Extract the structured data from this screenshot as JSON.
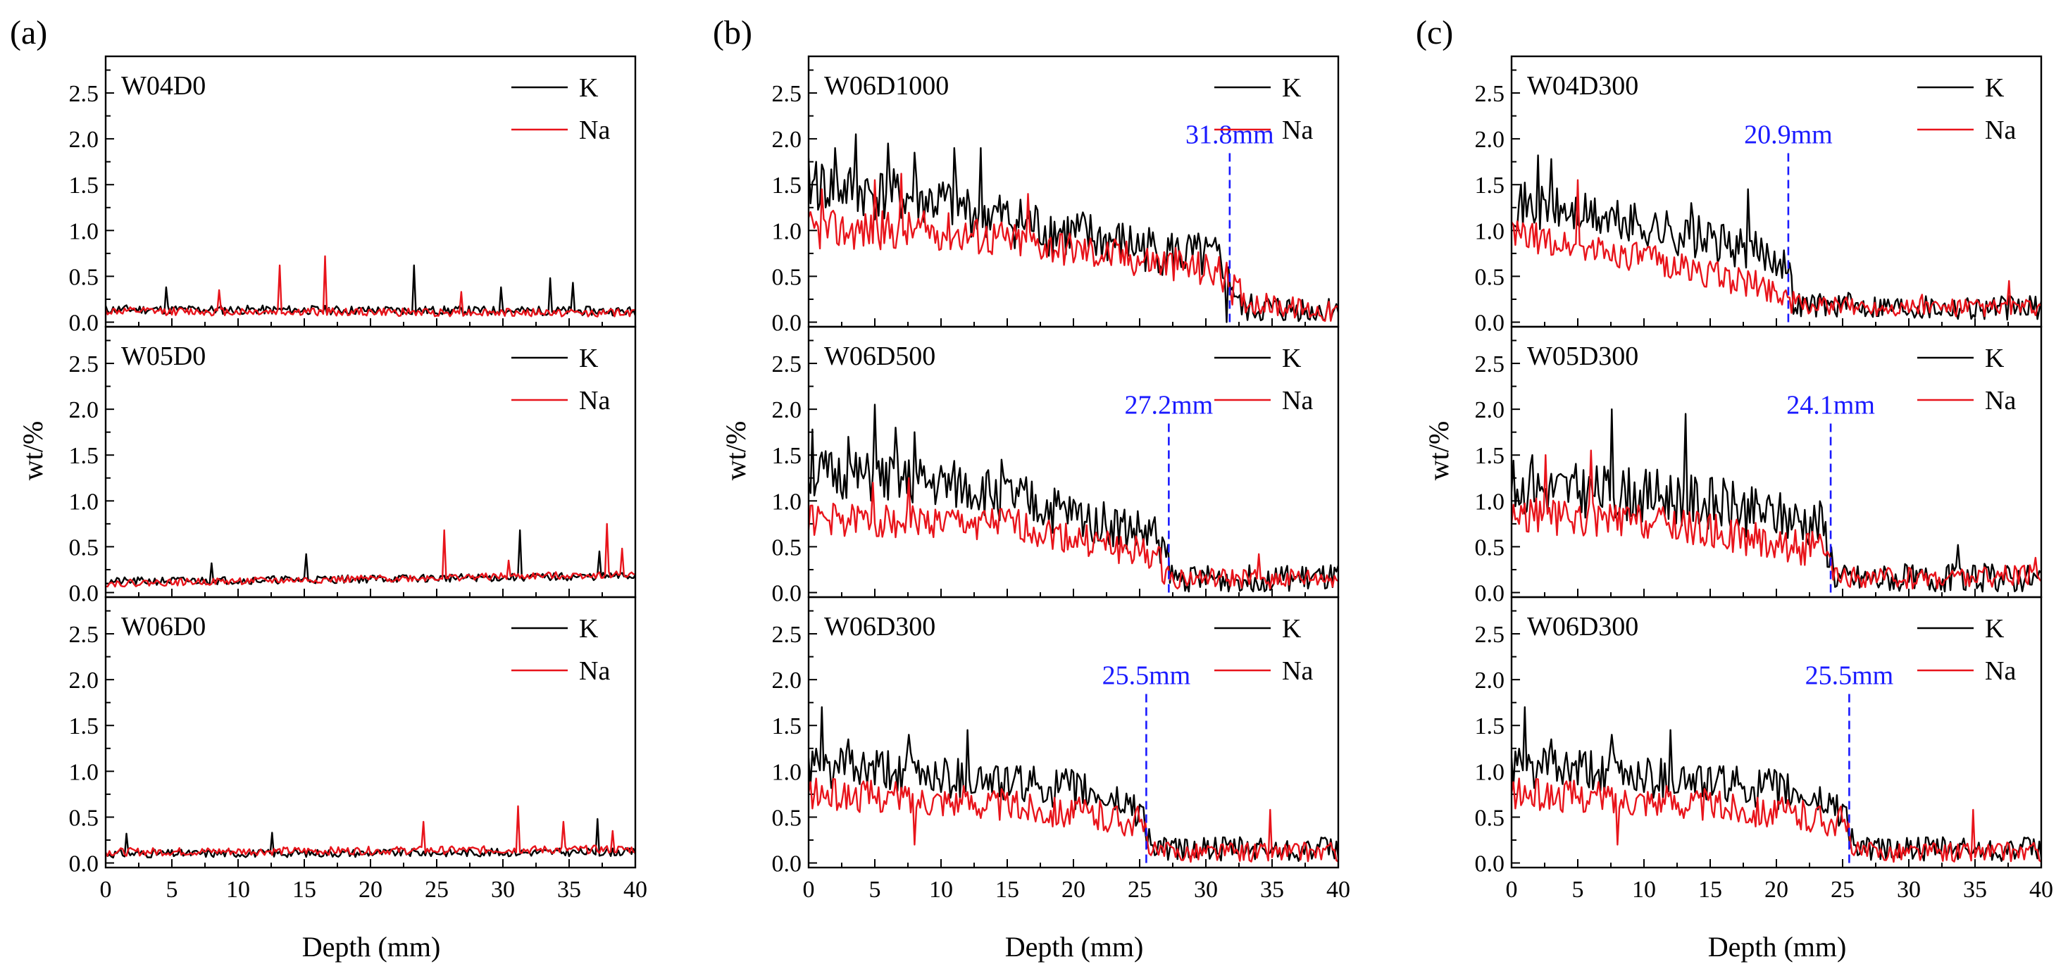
{
  "figure": {
    "x_label": "Depth (mm)",
    "y_label": "wt/%",
    "x_ticks": [
      "0",
      "5",
      "10",
      "15",
      "20",
      "25",
      "30",
      "35",
      "40"
    ],
    "y_ticks": [
      "0.0",
      "0.5",
      "1.0",
      "1.5",
      "2.0",
      "2.5"
    ],
    "legend_k": "K",
    "legend_na": "Na",
    "colors": {
      "k": "#000000",
      "na": "#e8141b",
      "marker": "#1a1aff"
    }
  },
  "chart_data": [
    {
      "type": "line",
      "panel": "(a)",
      "title": "W04D0",
      "xlim": [
        0,
        40
      ],
      "ylim": [
        -0.05,
        2.9
      ],
      "series": [
        {
          "name": "K",
          "profile": [
            [
              0,
              0.14
            ],
            [
              40,
              0.12
            ]
          ],
          "noise": 0.09,
          "seed": 11,
          "spikes": [
            [
              4.5,
              0.38
            ],
            [
              23.3,
              0.62
            ],
            [
              29.8,
              0.38
            ],
            [
              33.5,
              0.48
            ],
            [
              35.3,
              0.43
            ]
          ]
        },
        {
          "name": "Na",
          "profile": [
            [
              0,
              0.12
            ],
            [
              40,
              0.1
            ]
          ],
          "noise": 0.08,
          "seed": 12,
          "spikes": [
            [
              13.2,
              0.62
            ],
            [
              16.5,
              0.72
            ],
            [
              8.5,
              0.35
            ],
            [
              26.8,
              0.33
            ]
          ]
        }
      ]
    },
    {
      "type": "line",
      "panel": "(a)",
      "title": "W05D0",
      "xlim": [
        0,
        40
      ],
      "ylim": [
        -0.05,
        2.9
      ],
      "series": [
        {
          "name": "K",
          "profile": [
            [
              0,
              0.12
            ],
            [
              40,
              0.18
            ]
          ],
          "noise": 0.08,
          "seed": 21,
          "spikes": [
            [
              15.1,
              0.42
            ],
            [
              31.3,
              0.68
            ],
            [
              37.3,
              0.45
            ],
            [
              8,
              0.32
            ]
          ]
        },
        {
          "name": "Na",
          "profile": [
            [
              0,
              0.1
            ],
            [
              40,
              0.2
            ]
          ],
          "noise": 0.07,
          "seed": 22,
          "spikes": [
            [
              25.6,
              0.68
            ],
            [
              37.8,
              0.75
            ],
            [
              39,
              0.48
            ],
            [
              30.4,
              0.35
            ]
          ]
        }
      ]
    },
    {
      "type": "line",
      "panel": "(a)",
      "title": "W06D0",
      "xlim": [
        0,
        40
      ],
      "ylim": [
        -0.05,
        2.9
      ],
      "series": [
        {
          "name": "K",
          "profile": [
            [
              0,
              0.1
            ],
            [
              40,
              0.12
            ]
          ],
          "noise": 0.08,
          "seed": 31,
          "spikes": [
            [
              1.6,
              0.32
            ],
            [
              12.6,
              0.33
            ],
            [
              37.1,
              0.48
            ]
          ]
        },
        {
          "name": "Na",
          "profile": [
            [
              0,
              0.12
            ],
            [
              40,
              0.15
            ]
          ],
          "noise": 0.08,
          "seed": 32,
          "spikes": [
            [
              31.2,
              0.62
            ],
            [
              24,
              0.45
            ],
            [
              34.5,
              0.45
            ],
            [
              38.3,
              0.35
            ]
          ]
        }
      ]
    },
    {
      "type": "line",
      "panel": "(b)",
      "title": "W06D1000",
      "xlim": [
        0,
        40
      ],
      "ylim": [
        -0.05,
        2.9
      ],
      "marker": {
        "x": 31.8,
        "label": "31.8mm"
      },
      "series": [
        {
          "name": "K",
          "profile": [
            [
              0,
              1.5
            ],
            [
              10,
              1.3
            ],
            [
              20,
              0.95
            ],
            [
              31.5,
              0.65
            ],
            [
              32.6,
              0.15
            ],
            [
              40,
              0.12
            ]
          ],
          "noise": 0.3,
          "seed": 41,
          "spikes": [
            [
              0.5,
              1.75
            ],
            [
              2,
              1.9
            ],
            [
              3.5,
              2.05
            ],
            [
              6,
              1.95
            ],
            [
              8,
              1.85
            ],
            [
              11,
              1.9
            ],
            [
              13,
              1.9
            ],
            [
              31.5,
              0.0
            ]
          ]
        },
        {
          "name": "Na",
          "profile": [
            [
              0,
              1.0
            ],
            [
              10,
              1.0
            ],
            [
              20,
              0.8
            ],
            [
              31,
              0.55
            ],
            [
              33,
              0.22
            ],
            [
              40,
              0.1
            ]
          ],
          "noise": 0.22,
          "seed": 42,
          "spikes": [
            [
              1,
              1.45
            ],
            [
              5,
              1.55
            ],
            [
              7,
              1.62
            ],
            [
              16.5,
              1.4
            ]
          ]
        }
      ]
    },
    {
      "type": "line",
      "panel": "(b)",
      "title": "W06D500",
      "xlim": [
        0,
        40
      ],
      "ylim": [
        -0.05,
        2.9
      ],
      "marker": {
        "x": 27.2,
        "label": "27.2mm"
      },
      "series": [
        {
          "name": "K",
          "profile": [
            [
              0,
              1.3
            ],
            [
              12,
              1.15
            ],
            [
              20,
              0.85
            ],
            [
              26.5,
              0.6
            ],
            [
              27.5,
              0.15
            ],
            [
              40,
              0.15
            ]
          ],
          "noise": 0.28,
          "seed": 51,
          "spikes": [
            [
              0.3,
              1.78
            ],
            [
              3,
              1.7
            ],
            [
              5,
              2.05
            ],
            [
              8,
              1.75
            ],
            [
              14.5,
              1.45
            ],
            [
              6.5,
              1.8
            ]
          ]
        },
        {
          "name": "Na",
          "profile": [
            [
              0,
              0.8
            ],
            [
              15,
              0.75
            ],
            [
              26,
              0.4
            ],
            [
              27.5,
              0.15
            ],
            [
              40,
              0.15
            ]
          ],
          "noise": 0.2,
          "seed": 52,
          "spikes": [
            [
              4.8,
              1.2
            ],
            [
              7.5,
              1.25
            ],
            [
              34,
              0.42
            ]
          ]
        }
      ]
    },
    {
      "type": "line",
      "panel": "(b)",
      "title": "W06D300",
      "xlim": [
        0,
        40
      ],
      "ylim": [
        -0.05,
        2.9
      ],
      "marker": {
        "x": 25.5,
        "label": "25.5mm"
      },
      "series": [
        {
          "name": "K",
          "profile": [
            [
              0,
              1.05
            ],
            [
              10,
              0.95
            ],
            [
              20,
              0.8
            ],
            [
              25,
              0.6
            ],
            [
              26,
              0.15
            ],
            [
              40,
              0.15
            ]
          ],
          "noise": 0.24,
          "seed": 61,
          "spikes": [
            [
              1,
              1.7
            ],
            [
              3,
              1.35
            ],
            [
              7.5,
              1.4
            ],
            [
              12,
              1.45
            ]
          ]
        },
        {
          "name": "Na",
          "profile": [
            [
              0,
              0.75
            ],
            [
              10,
              0.7
            ],
            [
              20,
              0.55
            ],
            [
              25,
              0.45
            ],
            [
              26,
              0.12
            ],
            [
              40,
              0.12
            ]
          ],
          "noise": 0.2,
          "seed": 62,
          "spikes": [
            [
              34.8,
              0.58
            ],
            [
              8,
              0.2
            ]
          ]
        }
      ]
    },
    {
      "type": "line",
      "panel": "(c)",
      "title": "W04D300",
      "xlim": [
        0,
        40
      ],
      "ylim": [
        -0.05,
        2.9
      ],
      "marker": {
        "x": 20.9,
        "label": "20.9mm"
      },
      "series": [
        {
          "name": "K",
          "profile": [
            [
              0,
              1.3
            ],
            [
              10,
              1.05
            ],
            [
              20.5,
              0.7
            ],
            [
              21.5,
              0.2
            ],
            [
              40,
              0.15
            ]
          ],
          "noise": 0.25,
          "seed": 71,
          "spikes": [
            [
              2,
              1.82
            ],
            [
              3,
              1.78
            ],
            [
              17.8,
              1.45
            ],
            [
              13.5,
              1.3
            ]
          ]
        },
        {
          "name": "Na",
          "profile": [
            [
              0,
              0.95
            ],
            [
              10,
              0.7
            ],
            [
              20,
              0.35
            ],
            [
              22,
              0.18
            ],
            [
              40,
              0.15
            ]
          ],
          "noise": 0.18,
          "seed": 72,
          "spikes": [
            [
              5,
              1.55
            ],
            [
              37.5,
              0.45
            ],
            [
              31,
              0.3
            ]
          ]
        }
      ]
    },
    {
      "type": "line",
      "panel": "(c)",
      "title": "W05D300",
      "xlim": [
        0,
        40
      ],
      "ylim": [
        -0.05,
        2.9
      ],
      "marker": {
        "x": 24.1,
        "label": "24.1mm"
      },
      "series": [
        {
          "name": "K",
          "profile": [
            [
              0,
              1.15
            ],
            [
              12,
              1.05
            ],
            [
              23.5,
              0.75
            ],
            [
              24.5,
              0.15
            ],
            [
              40,
              0.15
            ]
          ],
          "noise": 0.3,
          "seed": 81,
          "spikes": [
            [
              7.5,
              2.0
            ],
            [
              13.2,
              1.95
            ],
            [
              1.5,
              1.5
            ],
            [
              33.7,
              0.52
            ]
          ]
        },
        {
          "name": "Na",
          "profile": [
            [
              0,
              0.85
            ],
            [
              12,
              0.75
            ],
            [
              23.5,
              0.45
            ],
            [
              24.5,
              0.15
            ],
            [
              40,
              0.18
            ]
          ],
          "noise": 0.22,
          "seed": 82,
          "spikes": [
            [
              2.5,
              1.5
            ],
            [
              6,
              1.55
            ],
            [
              39.5,
              0.38
            ]
          ]
        }
      ]
    },
    {
      "type": "line",
      "panel": "(c)",
      "title": "W06D300",
      "xlim": [
        0,
        40
      ],
      "ylim": [
        -0.05,
        2.9
      ],
      "marker": {
        "x": 25.5,
        "label": "25.5mm"
      },
      "series": [
        {
          "name": "K",
          "profile": [
            [
              0,
              1.05
            ],
            [
              10,
              0.95
            ],
            [
              20,
              0.8
            ],
            [
              25,
              0.6
            ],
            [
              26,
              0.15
            ],
            [
              40,
              0.15
            ]
          ],
          "noise": 0.24,
          "seed": 61,
          "spikes": [
            [
              1,
              1.7
            ],
            [
              3,
              1.35
            ],
            [
              7.5,
              1.4
            ],
            [
              12,
              1.45
            ]
          ]
        },
        {
          "name": "Na",
          "profile": [
            [
              0,
              0.75
            ],
            [
              10,
              0.7
            ],
            [
              20,
              0.55
            ],
            [
              25,
              0.45
            ],
            [
              26,
              0.12
            ],
            [
              40,
              0.12
            ]
          ],
          "noise": 0.2,
          "seed": 62,
          "spikes": [
            [
              34.8,
              0.58
            ],
            [
              8,
              0.2
            ]
          ]
        }
      ]
    }
  ]
}
